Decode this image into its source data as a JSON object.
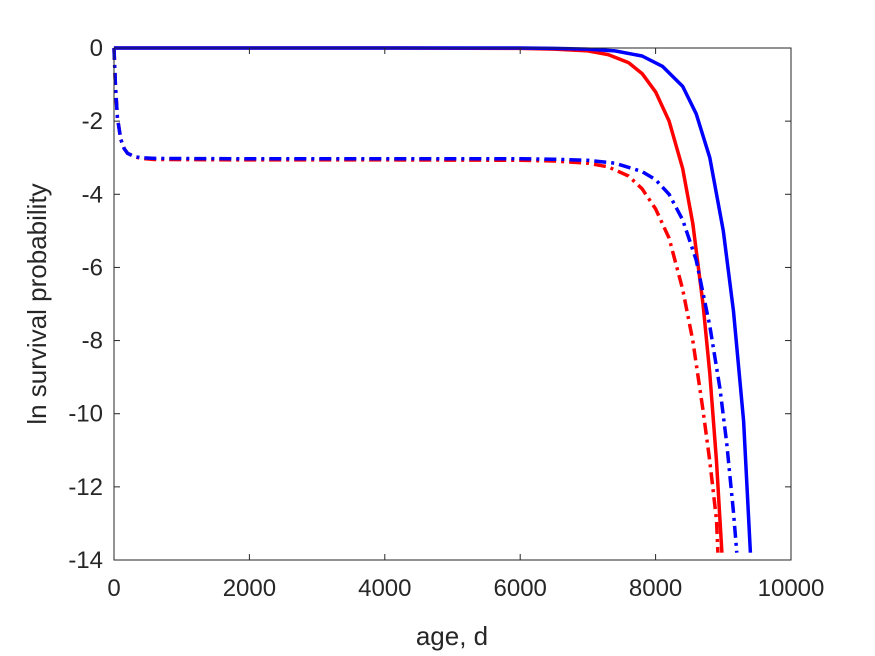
{
  "chart_data": {
    "type": "line",
    "title": "",
    "xlabel": "age, d",
    "ylabel": "ln survival probability",
    "xlim": [
      0,
      10000
    ],
    "ylim": [
      -14,
      0
    ],
    "xticks": [
      0,
      2000,
      4000,
      6000,
      8000,
      10000
    ],
    "xtick_labels": [
      "0",
      "2000",
      "4000",
      "6000",
      "8000",
      "10000"
    ],
    "yticks": [
      0,
      -2,
      -4,
      -6,
      -8,
      -10,
      -12,
      -14
    ],
    "ytick_labels": [
      "0",
      "-2",
      "-4",
      "-6",
      "-8",
      "-10",
      "-12",
      "-14"
    ],
    "grid": false,
    "legend": "none",
    "series": [
      {
        "color": "#ff0000",
        "style": "solid",
        "x": [
          0,
          2000,
          4000,
          6000,
          6500,
          7000,
          7300,
          7600,
          7800,
          8000,
          8200,
          8400,
          8550,
          8700,
          8800,
          8900,
          8980
        ],
        "y": [
          0,
          0,
          0,
          -0.01,
          -0.03,
          -0.08,
          -0.18,
          -0.4,
          -0.7,
          -1.2,
          -2.0,
          -3.3,
          -4.8,
          -7.0,
          -8.9,
          -11.3,
          -13.8
        ]
      },
      {
        "color": "#0000ff",
        "style": "solid",
        "x": [
          0,
          2000,
          4000,
          6000,
          6500,
          7000,
          7400,
          7800,
          8100,
          8400,
          8600,
          8800,
          9000,
          9150,
          9300,
          9400
        ],
        "y": [
          0,
          0,
          0,
          0,
          -0.01,
          -0.03,
          -0.08,
          -0.22,
          -0.5,
          -1.05,
          -1.8,
          -3.0,
          -5.0,
          -7.2,
          -10.2,
          -13.8
        ]
      },
      {
        "color": "#ff0000",
        "style": "dashdot",
        "x": [
          0,
          20,
          50,
          100,
          150,
          200,
          300,
          400,
          600,
          2000,
          4000,
          6000,
          6500,
          7000,
          7300,
          7600,
          7800,
          8000,
          8200,
          8400,
          8550,
          8700,
          8800,
          8900,
          8920
        ],
        "y": [
          0,
          -1.0,
          -1.9,
          -2.5,
          -2.75,
          -2.88,
          -2.97,
          -3.02,
          -3.05,
          -3.06,
          -3.06,
          -3.07,
          -3.09,
          -3.15,
          -3.25,
          -3.5,
          -3.85,
          -4.4,
          -5.2,
          -6.6,
          -8.0,
          -9.9,
          -11.3,
          -12.9,
          -13.8
        ]
      },
      {
        "color": "#0000ff",
        "style": "dashdot",
        "x": [
          0,
          20,
          50,
          100,
          150,
          200,
          300,
          400,
          600,
          2000,
          4000,
          6000,
          6500,
          7000,
          7400,
          7800,
          8000,
          8200,
          8400,
          8600,
          8800,
          8950,
          9050,
          9150,
          9200
        ],
        "y": [
          0,
          -1.0,
          -1.9,
          -2.5,
          -2.75,
          -2.88,
          -2.97,
          -3.0,
          -3.02,
          -3.03,
          -3.03,
          -3.03,
          -3.04,
          -3.07,
          -3.15,
          -3.38,
          -3.6,
          -4.0,
          -4.7,
          -5.8,
          -7.6,
          -9.3,
          -10.8,
          -12.7,
          -13.8
        ]
      }
    ]
  }
}
